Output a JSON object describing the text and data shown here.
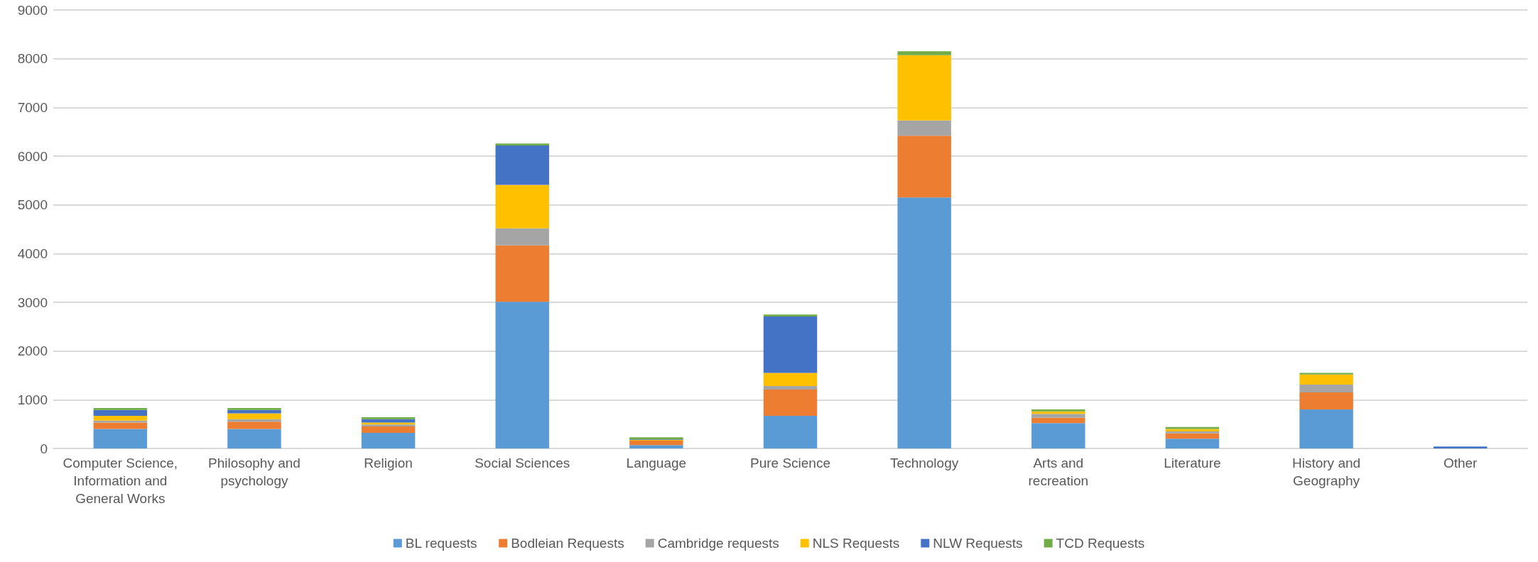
{
  "chart_data": {
    "type": "bar",
    "stacked": true,
    "categories": [
      "Computer Science, Information and General Works",
      "Philosophy and psychology",
      "Religion",
      "Social Sciences",
      "Language",
      "Pure Science",
      "Technology",
      "Arts and recreation",
      "Literature",
      "History and Geography",
      "Other"
    ],
    "series": [
      {
        "name": "BL requests",
        "color": "#5b9bd5",
        "values": [
          400,
          400,
          320,
          3010,
          70,
          670,
          5150,
          520,
          200,
          800,
          0
        ]
      },
      {
        "name": "Bodleian Requests",
        "color": "#ed7d31",
        "values": [
          130,
          150,
          130,
          1160,
          90,
          540,
          1270,
          110,
          110,
          350,
          0
        ]
      },
      {
        "name": "Cambridge requests",
        "color": "#a5a5a5",
        "values": [
          40,
          50,
          40,
          350,
          null,
          70,
          310,
          80,
          40,
          160,
          0
        ]
      },
      {
        "name": "NLS Requests",
        "color": "#ffc000",
        "values": [
          100,
          120,
          40,
          890,
          20,
          270,
          1340,
          50,
          50,
          210,
          0
        ]
      },
      {
        "name": "NLW Requests",
        "color": "#4472c4",
        "values": [
          120,
          70,
          70,
          810,
          10,
          1160,
          0,
          0,
          0,
          0,
          40
        ]
      },
      {
        "name": "TCD Requests",
        "color": "#70ad47",
        "values": [
          40,
          40,
          40,
          40,
          40,
          40,
          80,
          40,
          40,
          30,
          0
        ]
      }
    ],
    "ylim": [
      0,
      9000
    ],
    "yticks": [
      0,
      1000,
      2000,
      3000,
      4000,
      5000,
      6000,
      7000,
      8000,
      9000
    ],
    "grid": "y",
    "legend": "bottom"
  }
}
